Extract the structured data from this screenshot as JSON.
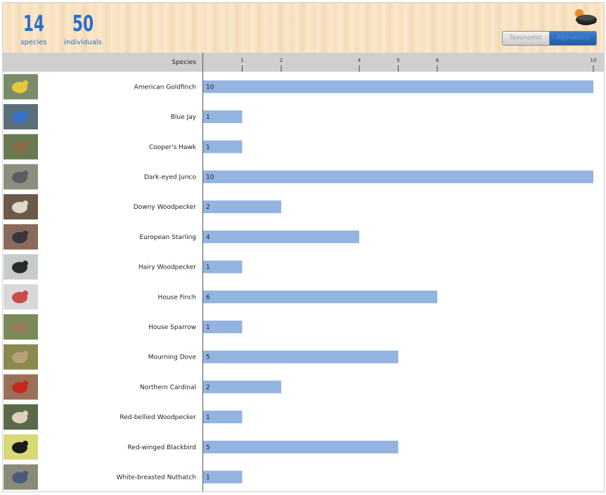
{
  "header": {
    "species_count": "14",
    "species_label": "species",
    "individuals_count": "50",
    "individuals_label": "individuals"
  },
  "sort_toggle": {
    "options": [
      "Taxonomic",
      "Alphabetic"
    ],
    "selected": "Alphabetic"
  },
  "colors": {
    "accent": "#2a70c9",
    "bar": "#93b3e0",
    "axis_band": "#cfcfcf"
  },
  "chart_data": {
    "type": "bar",
    "orientation": "horizontal",
    "category_header": "Species",
    "categories": [
      "American Goldfinch",
      "Blue Jay",
      "Cooper's Hawk",
      "Dark-eyed Junco",
      "Downy Woodpecker",
      "European Starling",
      "Hairy Woodpecker",
      "House Finch",
      "House Sparrow",
      "Mourning Dove",
      "Northern Cardinal",
      "Red-bellied Woodpecker",
      "Red-winged Blackbird",
      "White-breasted Nuthatch"
    ],
    "values": [
      10,
      1,
      1,
      10,
      2,
      4,
      1,
      6,
      1,
      5,
      2,
      1,
      5,
      1
    ],
    "xticks": [
      1,
      2,
      4,
      5,
      6,
      10
    ],
    "xlim": [
      0,
      10
    ],
    "bar_labels": true,
    "thumbnails": [
      "goldfinch-photo",
      "blue-jay-photo",
      "coopers-hawk-photo",
      "junco-photo",
      "downy-woodpecker-photo",
      "starling-photo",
      "hairy-woodpecker-photo",
      "house-finch-photo",
      "house-sparrow-photo",
      "mourning-dove-photo",
      "cardinal-photo",
      "red-bellied-woodpecker-photo",
      "red-winged-blackbird-photo",
      "nuthatch-photo"
    ]
  }
}
